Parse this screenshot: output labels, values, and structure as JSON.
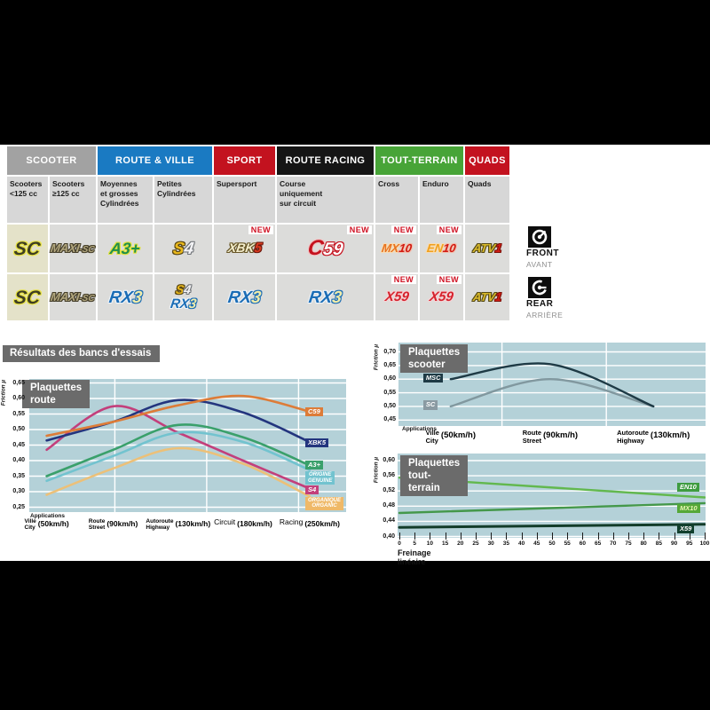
{
  "results_banner": "Résultats des bancs d'essais",
  "front_rear": {
    "front": {
      "label": "FRONT",
      "sub": "AVANT"
    },
    "rear": {
      "label": "REAR",
      "sub": "ARRIÈRE"
    }
  },
  "table": {
    "categories": [
      {
        "label": "SCOOTER",
        "color": "#a2a2a2",
        "span": 2
      },
      {
        "label": "ROUTE & VILLE",
        "color": "#1a7ac2",
        "span": 2
      },
      {
        "label": "SPORT",
        "color": "#c3121f",
        "span": 1
      },
      {
        "label": "ROUTE RACING",
        "color": "#151515",
        "span": 1
      },
      {
        "label": "TOUT-TERRAIN",
        "color": "#47a437",
        "span": 2
      },
      {
        "label": "QUADS",
        "color": "#c3121f",
        "span": 1
      }
    ],
    "subheaders": [
      [
        "Scooters",
        "<125 cc"
      ],
      [
        "Scooters",
        "≥125 cc"
      ],
      [
        "Moyennes",
        "et grosses",
        "Cylindrées"
      ],
      [
        "Petites",
        "Cylindrées"
      ],
      [
        "Supersport"
      ],
      [
        "Course",
        "uniquement",
        "sur circuit"
      ],
      [
        "Cross"
      ],
      [
        "Enduro"
      ],
      [
        "Quads"
      ]
    ],
    "rows": [
      {
        "side": "front",
        "cells": [
          {
            "logos": [
              {
                "style": "sc",
                "parts": [
                  {
                    "style": "sc-t",
                    "text": "SC"
                  }
                ]
              }
            ]
          },
          {
            "logos": [
              {
                "style": "maxisc",
                "parts": [
                  {
                    "style": "maxi",
                    "text": "MAXI"
                  },
                  {
                    "style": "maxi-sc",
                    "text": "-SC"
                  }
                ]
              }
            ]
          },
          {
            "logos": [
              {
                "style": "a3",
                "parts": [
                  {
                    "style": "a3-t",
                    "text": "A3+"
                  }
                ]
              }
            ]
          },
          {
            "logos": [
              {
                "style": "s4",
                "parts": [
                  {
                    "style": "s4-s",
                    "text": "S"
                  },
                  {
                    "style": "s4-4",
                    "text": "4"
                  }
                ]
              }
            ]
          },
          {
            "new": "NEW",
            "logos": [
              {
                "style": "xbk5",
                "parts": [
                  {
                    "style": "xbk",
                    "text": "XBK"
                  },
                  {
                    "style": "xbk-5",
                    "text": "5"
                  }
                ]
              }
            ]
          },
          {
            "new": "NEW",
            "logos": [
              {
                "style": "c59",
                "parts": [
                  {
                    "style": "c59-c",
                    "text": "C"
                  },
                  {
                    "style": "c59-n",
                    "text": "59"
                  }
                ]
              }
            ]
          },
          {
            "new": "NEW",
            "logos": [
              {
                "style": "mx10",
                "parts": [
                  {
                    "style": "mx",
                    "text": "MX"
                  },
                  {
                    "style": "red-n",
                    "text": "10"
                  }
                ]
              }
            ]
          },
          {
            "new": "NEW",
            "logos": [
              {
                "style": "en10",
                "parts": [
                  {
                    "style": "en",
                    "text": "EN"
                  },
                  {
                    "style": "red-n",
                    "text": "10"
                  }
                ]
              }
            ]
          },
          {
            "logos": [
              {
                "style": "atv1",
                "parts": [
                  {
                    "style": "atv",
                    "text": "ATV"
                  },
                  {
                    "style": "atv-1",
                    "text": "1"
                  }
                ]
              }
            ]
          }
        ]
      },
      {
        "side": "rear",
        "cells": [
          {
            "logos": [
              {
                "style": "sc",
                "parts": [
                  {
                    "style": "sc-t",
                    "text": "SC"
                  }
                ]
              }
            ]
          },
          {
            "logos": [
              {
                "style": "maxisc",
                "parts": [
                  {
                    "style": "maxi",
                    "text": "MAXI"
                  },
                  {
                    "style": "maxi-sc",
                    "text": "-SC"
                  }
                ]
              }
            ]
          },
          {
            "logos": [
              {
                "style": "rx3",
                "parts": [
                  {
                    "style": "rx",
                    "text": "RX"
                  },
                  {
                    "style": "rx-3",
                    "text": "3"
                  }
                ]
              }
            ]
          },
          {
            "logos": [
              {
                "style": "s4",
                "parts": [
                  {
                    "style": "s4-s",
                    "text": "S"
                  },
                  {
                    "style": "s4-4",
                    "text": "4"
                  }
                ]
              },
              {
                "style": "rx3",
                "parts": [
                  {
                    "style": "rx",
                    "text": "RX"
                  },
                  {
                    "style": "rx-3",
                    "text": "3"
                  }
                ]
              }
            ]
          },
          {
            "logos": [
              {
                "style": "rx3",
                "parts": [
                  {
                    "style": "rx",
                    "text": "RX"
                  },
                  {
                    "style": "rx-3",
                    "text": "3"
                  }
                ]
              }
            ]
          },
          {
            "logos": [
              {
                "style": "rx3",
                "parts": [
                  {
                    "style": "rx",
                    "text": "RX"
                  },
                  {
                    "style": "rx-3",
                    "text": "3"
                  }
                ]
              }
            ]
          },
          {
            "new": "NEW",
            "logos": [
              {
                "style": "x59",
                "parts": [
                  {
                    "style": "x59-t",
                    "text": "X59"
                  }
                ]
              }
            ]
          },
          {
            "new": "NEW",
            "logos": [
              {
                "style": "x59",
                "parts": [
                  {
                    "style": "x59-t",
                    "text": "X59"
                  }
                ]
              }
            ]
          },
          {
            "logos": [
              {
                "style": "atv1",
                "parts": [
                  {
                    "style": "atv",
                    "text": "ATV"
                  },
                  {
                    "style": "atv-1",
                    "text": "1"
                  }
                ]
              }
            ]
          }
        ]
      }
    ]
  },
  "chart_data": [
    {
      "id": "route",
      "type": "line",
      "title": "Plaquettes route",
      "ylabel": "Friction µ",
      "ylim": [
        0.25,
        0.65
      ],
      "yticks": [
        "0,65",
        "0,60",
        "0,55",
        "0,50",
        "0,45",
        "0,40",
        "0,35",
        "0,30",
        "0,25"
      ],
      "plot_bg": "#b4d1d8",
      "xheading": "Applications",
      "categories": [
        {
          "fr": "Ville",
          "en": "City",
          "speed": "(50km/h)"
        },
        {
          "fr": "Route",
          "en": "Street",
          "speed": "(90km/h)"
        },
        {
          "fr": "Autoroute",
          "en": "Highway",
          "speed": "(130km/h)"
        },
        {
          "fr": "Circuit",
          "en": "",
          "speed": "(180km/h)"
        },
        {
          "fr": "Racing",
          "en": "",
          "speed": "(250km/h)"
        }
      ],
      "series": [
        {
          "name": "C59",
          "color": "#dd7c38",
          "label_lines": [
            "C59"
          ],
          "values": [
            0.48,
            0.525,
            0.578,
            0.608,
            0.558
          ]
        },
        {
          "name": "XBK5",
          "color": "#23357e",
          "label_lines": [
            "XBK5"
          ],
          "values": [
            0.465,
            0.525,
            0.595,
            0.555,
            0.46
          ]
        },
        {
          "name": "A3+",
          "color": "#3aa06b",
          "label_lines": [
            "A3+"
          ],
          "values": [
            0.35,
            0.435,
            0.515,
            0.475,
            0.385
          ]
        },
        {
          "name": "ORIGINE",
          "color": "#72c3cf",
          "label_lines": [
            "ORIGINE",
            "GENUINE"
          ],
          "values": [
            0.335,
            0.415,
            0.49,
            0.46,
            0.37
          ]
        },
        {
          "name": "S4",
          "color": "#c33f7b",
          "label_lines": [
            "S4"
          ],
          "values": [
            0.435,
            0.575,
            0.49,
            0.4,
            0.31
          ]
        },
        {
          "name": "ORGANIQUE",
          "color": "#ecc078",
          "label_bg": "#efb968",
          "label_lines": [
            "ORGANIQUE",
            "ORGANIC"
          ],
          "values": [
            0.29,
            0.375,
            0.44,
            0.39,
            0.285
          ]
        }
      ]
    },
    {
      "id": "scooter",
      "type": "line",
      "title": "Plaquettes scooter",
      "ylabel": "Friction µ",
      "ylim": [
        0.45,
        0.7
      ],
      "yticks": [
        "0,70",
        "0,65",
        "0,60",
        "0,55",
        "0,50",
        "0,45"
      ],
      "plot_bg": "#b4d1d8",
      "xheading": "Applications",
      "categories": [
        {
          "fr": "Ville",
          "en": "City",
          "speed": "(50km/h)"
        },
        {
          "fr": "Route",
          "en": "Street",
          "speed": "(90km/h)"
        },
        {
          "fr": "Autoroute",
          "en": "Highway",
          "speed": "(130km/h)"
        }
      ],
      "series": [
        {
          "name": "MSC",
          "color": "#1e3a45",
          "label_bg": "#1e3a45",
          "label_lines": [
            "MSC"
          ],
          "values": [
            0.6,
            0.655,
            0.5
          ]
        },
        {
          "name": "SC",
          "color": "#81989f",
          "label_bg": "#8a9aa2",
          "label_lines": [
            "SC"
          ],
          "values": [
            0.5,
            0.6,
            0.5
          ]
        }
      ]
    },
    {
      "id": "tout",
      "type": "line",
      "title": "Plaquettes tout-terrain",
      "ylabel": "Friction µ",
      "ylim": [
        0.4,
        0.6
      ],
      "yticks": [
        "0,60",
        "0,56",
        "0,52",
        "0,48",
        "0,44",
        "0,40"
      ],
      "plot_bg": "#b4d1d8",
      "xlabel": "Freinage linéaire",
      "xlim": [
        0,
        100
      ],
      "xticks": [
        "0",
        "5",
        "10",
        "15",
        "20",
        "25",
        "30",
        "35",
        "40",
        "45",
        "50",
        "55",
        "60",
        "65",
        "70",
        "75",
        "80",
        "85",
        "90",
        "95",
        "100"
      ],
      "series": [
        {
          "name": "EN10",
          "color": "#62b84e",
          "label_bg": "#3e9c40",
          "label_fg": "#ffffff",
          "label_lines": [
            "EN10"
          ],
          "points": [
            [
              0,
              0.555
            ],
            [
              100,
              0.503
            ]
          ]
        },
        {
          "name": "MX10",
          "color": "#44984a",
          "label_bg": "#55a838",
          "label_fg": "#eaf5b5",
          "label_lines": [
            "MX10"
          ],
          "points": [
            [
              0,
              0.462
            ],
            [
              100,
              0.488
            ]
          ]
        },
        {
          "name": "X59",
          "color": "#123c2a",
          "label_bg": "#12402e",
          "label_fg": "#ffffff",
          "label_lines": [
            "X59"
          ],
          "points": [
            [
              0,
              0.424
            ],
            [
              100,
              0.432
            ]
          ]
        }
      ]
    }
  ]
}
